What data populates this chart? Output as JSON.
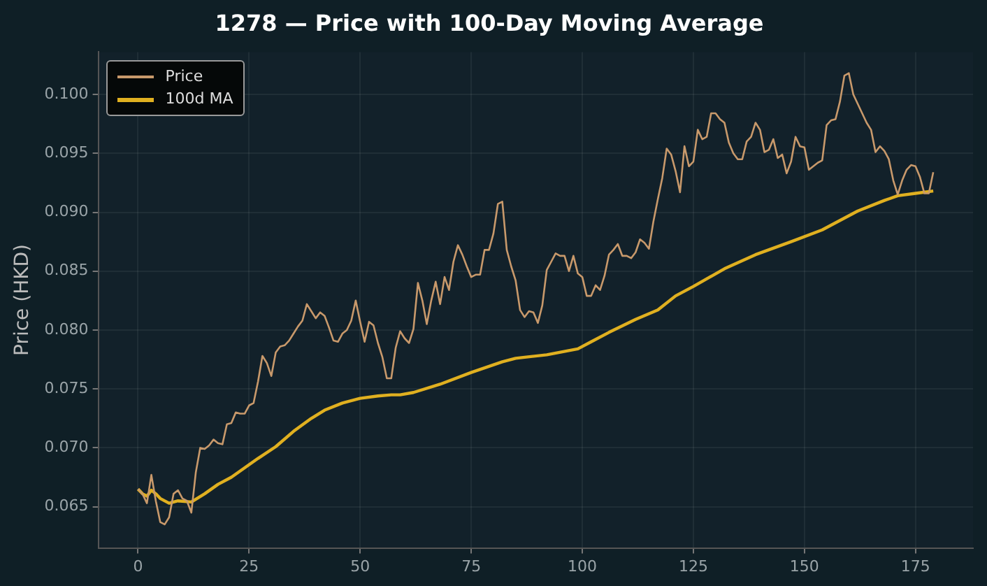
{
  "chart_data": {
    "type": "line",
    "title": "1278 — Price with 100-Day Moving Average",
    "ylabel": "Price (HKD)",
    "xlim": [
      -8.95,
      187.95
    ],
    "xticks": [
      0,
      25,
      50,
      75,
      100,
      125,
      150,
      175
    ],
    "ylim": [
      0.0615,
      0.1036
    ],
    "yticks": [
      {
        "value": 0.065,
        "label": "0.065"
      },
      {
        "value": 0.07,
        "label": "0.070"
      },
      {
        "value": 0.075,
        "label": "0.075"
      },
      {
        "value": 0.08,
        "label": "0.080"
      },
      {
        "value": 0.085,
        "label": "0.085"
      },
      {
        "value": 0.09,
        "label": "0.090"
      },
      {
        "value": 0.095,
        "label": "0.095"
      },
      {
        "value": 0.1,
        "label": "0.100"
      }
    ],
    "grid": true,
    "legend": "top left",
    "series": [
      {
        "name": "Price",
        "color": "#c8996b",
        "x": [
          0,
          1,
          2,
          3,
          4,
          5,
          6,
          7,
          8,
          9,
          10,
          11,
          12,
          13,
          14,
          15,
          16,
          17,
          18,
          19,
          20,
          21,
          22,
          23,
          24,
          25,
          26,
          27,
          28,
          29,
          30,
          31,
          32,
          33,
          34,
          35,
          36,
          37,
          38,
          39,
          40,
          41,
          42,
          43,
          44,
          45,
          46,
          47,
          48,
          49,
          50,
          51,
          52,
          53,
          54,
          55,
          56,
          57,
          58,
          59,
          60,
          61,
          62,
          63,
          64,
          65,
          66,
          67,
          68,
          69,
          70,
          71,
          72,
          73,
          74,
          75,
          76,
          77,
          78,
          79,
          80,
          81,
          82,
          83,
          84,
          85,
          86,
          87,
          88,
          89,
          90,
          91,
          92,
          93,
          94,
          95,
          96,
          97,
          98,
          99,
          100,
          101,
          102,
          103,
          104,
          105,
          106,
          107,
          108,
          109,
          110,
          111,
          112,
          113,
          114,
          115,
          116,
          117,
          118,
          119,
          120,
          121,
          122,
          123,
          124,
          125,
          126,
          127,
          128,
          129,
          130,
          131,
          132,
          133,
          134,
          135,
          136,
          137,
          138,
          139,
          140,
          141,
          142,
          143,
          144,
          145,
          146,
          147,
          148,
          149,
          150,
          151,
          152,
          153,
          154,
          155,
          156,
          157,
          158,
          159,
          160,
          161,
          162,
          163,
          164,
          165,
          166,
          167,
          168,
          169,
          170,
          171,
          172,
          173,
          174,
          175,
          176,
          177,
          178,
          179
        ],
        "values": [
          0.0665,
          0.0661,
          0.0653,
          0.0677,
          0.0655,
          0.0637,
          0.0635,
          0.0641,
          0.0661,
          0.0664,
          0.0657,
          0.0655,
          0.0645,
          0.0679,
          0.07,
          0.0699,
          0.0702,
          0.0707,
          0.0704,
          0.0703,
          0.072,
          0.0721,
          0.073,
          0.0729,
          0.0729,
          0.0736,
          0.0738,
          0.0756,
          0.0778,
          0.0772,
          0.0761,
          0.0781,
          0.0786,
          0.0787,
          0.0791,
          0.0797,
          0.0803,
          0.0808,
          0.0822,
          0.0816,
          0.081,
          0.0815,
          0.0812,
          0.0802,
          0.0791,
          0.079,
          0.0797,
          0.08,
          0.0808,
          0.0825,
          0.0807,
          0.079,
          0.0807,
          0.0804,
          0.0789,
          0.0777,
          0.0759,
          0.0759,
          0.0785,
          0.0799,
          0.0793,
          0.0789,
          0.0801,
          0.084,
          0.0825,
          0.0805,
          0.0825,
          0.0841,
          0.0822,
          0.0845,
          0.0834,
          0.0858,
          0.0872,
          0.0864,
          0.0854,
          0.0845,
          0.0847,
          0.0847,
          0.0868,
          0.0868,
          0.0882,
          0.0907,
          0.0909,
          0.0868,
          0.0854,
          0.0842,
          0.0817,
          0.0811,
          0.0816,
          0.0815,
          0.0806,
          0.0821,
          0.0851,
          0.0858,
          0.0865,
          0.0863,
          0.0863,
          0.085,
          0.0863,
          0.0848,
          0.0845,
          0.0829,
          0.0829,
          0.0838,
          0.0834,
          0.0846,
          0.0864,
          0.0868,
          0.0873,
          0.0863,
          0.0863,
          0.0861,
          0.0866,
          0.0877,
          0.0874,
          0.0869,
          0.0892,
          0.0911,
          0.0929,
          0.0954,
          0.0949,
          0.0935,
          0.0917,
          0.0956,
          0.0939,
          0.0943,
          0.097,
          0.0962,
          0.0964,
          0.0984,
          0.0984,
          0.0979,
          0.0976,
          0.0959,
          0.095,
          0.0945,
          0.0945,
          0.096,
          0.0964,
          0.0976,
          0.097,
          0.0951,
          0.0953,
          0.0962,
          0.0946,
          0.0949,
          0.0933,
          0.0943,
          0.0964,
          0.0956,
          0.0955,
          0.0936,
          0.0939,
          0.0942,
          0.0944,
          0.0974,
          0.0978,
          0.0979,
          0.0994,
          0.1016,
          0.1018,
          0.1,
          0.0992,
          0.0984,
          0.0976,
          0.097,
          0.0951,
          0.0956,
          0.0952,
          0.0945,
          0.0927,
          0.0915,
          0.0927,
          0.0936,
          0.094,
          0.0939,
          0.093,
          0.0916,
          0.0916,
          0.0934
        ]
      },
      {
        "name": "100d MA",
        "color": "#e0b020",
        "x": [
          0,
          1,
          2,
          3,
          4,
          5,
          7,
          9,
          12,
          15,
          18,
          21,
          24,
          27,
          31,
          35,
          39,
          42,
          46,
          50,
          54,
          57,
          59,
          62,
          68,
          75,
          82,
          85,
          92,
          99,
          102,
          106,
          112,
          117,
          121,
          125,
          132,
          139,
          147,
          154,
          162,
          168,
          171,
          175,
          179
        ],
        "values": [
          0.0665,
          0.0661,
          0.0659,
          0.0664,
          0.0661,
          0.0657,
          0.0653,
          0.0655,
          0.0654,
          0.0661,
          0.0669,
          0.0675,
          0.0683,
          0.0691,
          0.0701,
          0.0714,
          0.0725,
          0.0732,
          0.0738,
          0.0742,
          0.0744,
          0.0745,
          0.0745,
          0.0747,
          0.0754,
          0.0764,
          0.0773,
          0.0776,
          0.0779,
          0.0784,
          0.079,
          0.0798,
          0.0809,
          0.0817,
          0.0829,
          0.0837,
          0.0852,
          0.0864,
          0.0875,
          0.0885,
          0.0901,
          0.091,
          0.0914,
          0.0916,
          0.0918
        ]
      }
    ]
  }
}
